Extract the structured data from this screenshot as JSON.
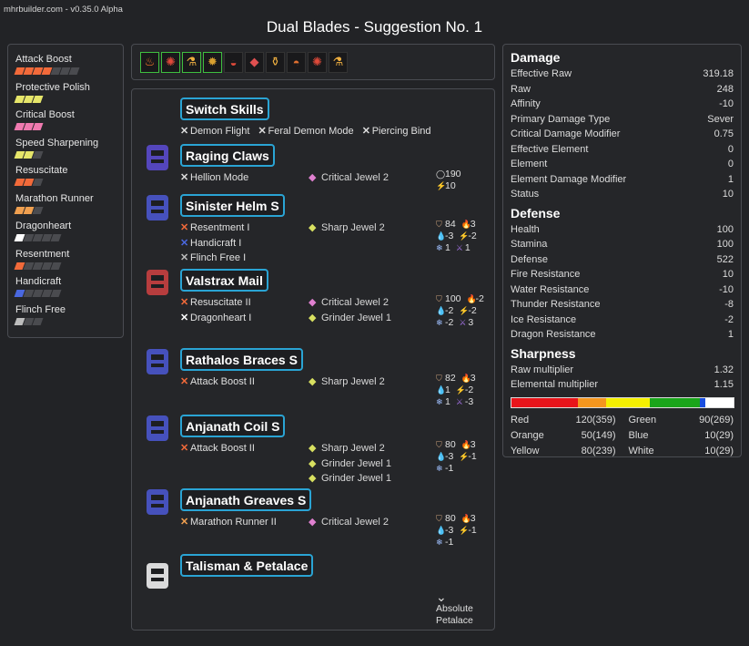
{
  "header": {
    "version": "mhrbuilder.com - v0.35.0 Alpha",
    "title": "Dual Blades - Suggestion No. 1"
  },
  "skills": [
    {
      "name": "Attack Boost",
      "level": 4,
      "max": 7,
      "color": "#f26a3a"
    },
    {
      "name": "Protective Polish",
      "level": 3,
      "max": 3,
      "color": "#e6e66a"
    },
    {
      "name": "Critical Boost",
      "level": 3,
      "max": 3,
      "color": "#f07ab0"
    },
    {
      "name": "Speed Sharpening",
      "level": 2,
      "max": 3,
      "color": "#e6e66a"
    },
    {
      "name": "Resuscitate",
      "level": 2,
      "max": 3,
      "color": "#f26a3a"
    },
    {
      "name": "Marathon Runner",
      "level": 2,
      "max": 3,
      "color": "#f0a050"
    },
    {
      "name": "Dragonheart",
      "level": 1,
      "max": 5,
      "color": "#ffffff"
    },
    {
      "name": "Resentment",
      "level": 1,
      "max": 5,
      "color": "#f26a3a"
    },
    {
      "name": "Handicraft",
      "level": 1,
      "max": 5,
      "color": "#4a68e0"
    },
    {
      "name": "Flinch Free",
      "level": 1,
      "max": 3,
      "color": "#bdbdbd"
    }
  ],
  "decorations": [
    "torch-icon",
    "hydra-icon",
    "flask-icon",
    "demon-icon",
    "chest-icon",
    "gem-icon",
    "potion-icon",
    "pie-icon",
    "hydra-icon",
    "flask-icon"
  ],
  "armor": {
    "weapon": {
      "name": "Switch Skills",
      "skills": [
        "Demon Flight",
        "Feral Demon Mode",
        "Piercing Bind"
      ]
    },
    "pieces": [
      {
        "name": "Raging Claws",
        "skills": [
          "Hellion Mode"
        ],
        "jewels": [
          "Critical Jewel 2"
        ],
        "stats": [
          "190",
          "10"
        ]
      },
      {
        "name": "Sinister Helm S",
        "skills": [
          "Resentment I",
          "Handicraft I",
          "Flinch Free I"
        ],
        "jewels": [
          "Sharp Jewel 2"
        ],
        "stats": [
          "84",
          "3",
          "-3",
          "-2",
          "1",
          "1"
        ]
      },
      {
        "name": "Valstrax Mail",
        "skills": [
          "Resuscitate II",
          "Dragonheart I"
        ],
        "jewels": [
          "Critical Jewel 2",
          "Grinder Jewel 1"
        ],
        "stats": [
          "100",
          "-2",
          "-2",
          "-2",
          "-2",
          "3"
        ]
      },
      {
        "name": "Rathalos Braces S",
        "skills": [
          "Attack Boost II"
        ],
        "jewels": [
          "Sharp Jewel 2"
        ],
        "stats": [
          "82",
          "3",
          "1",
          "-2",
          "1",
          "-3"
        ]
      },
      {
        "name": "Anjanath Coil S",
        "skills": [
          "Attack Boost II"
        ],
        "jewels": [
          "Sharp Jewel 2",
          "Grinder Jewel 1",
          "Grinder Jewel 1"
        ],
        "stats": [
          "80",
          "3",
          "-3",
          "-1",
          "-1"
        ]
      },
      {
        "name": "Anjanath Greaves S",
        "skills": [
          "Marathon Runner II"
        ],
        "jewels": [
          "Critical Jewel 2"
        ],
        "stats": [
          "80",
          "3",
          "-3",
          "-1",
          "-1"
        ]
      },
      {
        "name": "Talisman & Petalace",
        "skills": [],
        "jewels": [],
        "stats": [
          "Absolute",
          "Petalace"
        ]
      }
    ]
  },
  "stats": {
    "damage_title": "Damage",
    "damage": [
      [
        "Effective Raw",
        "319.18"
      ],
      [
        "Raw",
        "248"
      ],
      [
        "Affinity",
        "-10"
      ],
      [
        "Primary Damage Type",
        "Sever"
      ],
      [
        "Critical Damage Modifier",
        "0.75"
      ],
      [
        "Effective Element",
        "0"
      ],
      [
        "Element",
        "0"
      ],
      [
        "Element Damage Modifier",
        "1"
      ],
      [
        "Status",
        "10"
      ]
    ],
    "defense_title": "Defense",
    "defense": [
      [
        "Health",
        "100"
      ],
      [
        "Stamina",
        "100"
      ],
      [
        "Defense",
        "522"
      ],
      [
        "Fire Resistance",
        "10"
      ],
      [
        "Water Resistance",
        "-10"
      ],
      [
        "Thunder Resistance",
        "-8"
      ],
      [
        "Ice Resistance",
        "-2"
      ],
      [
        "Dragon Resistance",
        "1"
      ]
    ],
    "sharpness_title": "Sharpness",
    "sharpness": [
      [
        "Raw multiplier",
        "1.32"
      ],
      [
        "Elemental multiplier",
        "1.15"
      ]
    ],
    "sharpness_bar": [
      {
        "color": "#e8141a",
        "value": 120
      },
      {
        "color": "#f5961e",
        "value": 50
      },
      {
        "color": "#f5f000",
        "value": 80
      },
      {
        "color": "#1aa51a",
        "value": 90
      },
      {
        "color": "#1a4fe0",
        "value": 10
      },
      {
        "color": "#ffffff",
        "value": 10
      }
    ],
    "sharpness_max": 400,
    "sharpness_grid": [
      [
        "Red",
        "120(359)"
      ],
      [
        "Green",
        "90(269)"
      ],
      [
        "Orange",
        "50(149)"
      ],
      [
        "Blue",
        "10(29)"
      ],
      [
        "Yellow",
        "80(239)"
      ],
      [
        "White",
        "10(29)"
      ]
    ]
  }
}
